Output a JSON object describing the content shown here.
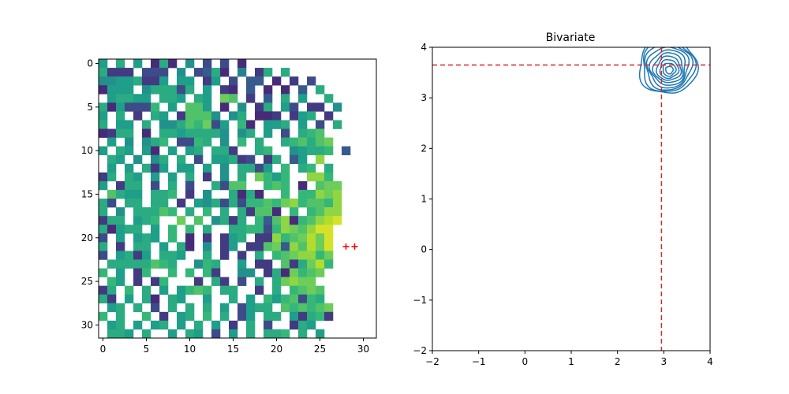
{
  "chart_data": [
    {
      "type": "heatmap",
      "title": "",
      "xlabel": "",
      "ylabel": "",
      "rows": 32,
      "cols": 32,
      "xlim": [
        -0.5,
        31.5
      ],
      "ylim": [
        31.5,
        -0.5
      ],
      "xticks": [
        0,
        5,
        10,
        15,
        20,
        25,
        30
      ],
      "yticks": [
        0,
        5,
        10,
        15,
        20,
        25,
        30
      ],
      "colormap": "viridis",
      "value_range": [
        0,
        1
      ],
      "missing_color": "#ffffff",
      "cells_rle": [
        "9.:.9.1:1.8.3.3.1",
        ":222.333.8.34:1.7.2:.:",
        "8899:229.99.29.3.44.1.2.3",
        "1999.8:::3:.9.21.4.1.1.4.:",
        ".9::99.::9.:9.=<.2.4.:.9..:",
        ":19333;.9.<<9.1.8.2:.93.22.8",
        "9.:.2.:9.2<<<8.8:.112.29:.2",
        ":.99.:.88:<;=39.;1.99:.9.3.:",
        "12::.1.::9::::8.8:.9.3.:;<",
        ".9.8.8:;.33;:.8.;.:..:;<:<=",
        "9.:9.91.9.9:.::2..:;..89::;.4",
        ".:9.8.8:.:.3.99:23.2:.49.>",
        ".9.9.:29.99.9.8.::39.;.:;.:",
        "2:.:9.9.9.:.2.8.:.=;9;..>>;",
        "9.2::.3.:.3..:3<<..;<;.1.<==",
        ".<:99.::;.2.8..:1:1..;.;;>=>",
        ":3.::.::.2.98:3:3;;<;=>;<<;>",
        ":.8.:::<;.:.;.:.:2<<1.;.;<>>",
        "2::.9:;..=.<.8:2:.;4<>1;<>?@",
        ":19::.9.;.;.:..::;;3;>=<>@@",
        "3.9.9:9.;.1.2.29:.22>;<=?=@",
        ":.2.::.9.:1.8.29.22<=4><?=@",
        "3.9:29.::9..:.2.2.:.;<=>>;=",
        ".:::::<;:..8;:..9.22.<2:=?;",
        ";.9.2;..;.;.;2..88.2:1=;<=",
        ".;9.2.2;...2.:2.3.:.:=>==",
        "2:.;.:.9.9;<;.::..2.:.;<=<",
        ":2.9.:1.:9..9..:.9.;9;<3;:",
        ".9:.:.3.:.:.:.9.39::.<;<;<=",
        ";.:..;.2.9:.;.:.39.::.92:;2",
        ".9:.9.9:.9.:.9.2.:.3..2:9.",
        ".::9.:..9.:9.3.9.:.::;.:.9."
      ],
      "markers": [
        {
          "x": 28,
          "y": 21,
          "symbol": "+",
          "color": "#ff0000"
        },
        {
          "x": 29,
          "y": 21,
          "symbol": "+",
          "color": "#ff0000"
        }
      ]
    },
    {
      "type": "contour",
      "title": "Bivariate",
      "xlabel": "",
      "ylabel": "",
      "xlim": [
        -2,
        4
      ],
      "ylim": [
        -2,
        4
      ],
      "xticks": [
        -2,
        -1,
        0,
        1,
        2,
        3,
        4
      ],
      "yticks": [
        -2,
        -1,
        0,
        1,
        2,
        3,
        4
      ],
      "xtick_labels": [
        "−2",
        "−1",
        "0",
        "1",
        "2",
        "3",
        "4"
      ],
      "ytick_labels": [
        "−2",
        "−1",
        "0",
        "1",
        "2",
        "3",
        "4"
      ],
      "grid": false,
      "line_color": "#1f77b4",
      "density_center": [
        3.12,
        3.55
      ],
      "contour_radii": [
        0.08,
        0.14,
        0.2,
        0.26,
        0.32,
        0.38,
        0.44,
        0.5,
        0.56,
        0.62
      ],
      "reference_lines": {
        "x": 2.95,
        "y": 3.65,
        "color": "#d62728",
        "style": "dashed"
      }
    }
  ]
}
